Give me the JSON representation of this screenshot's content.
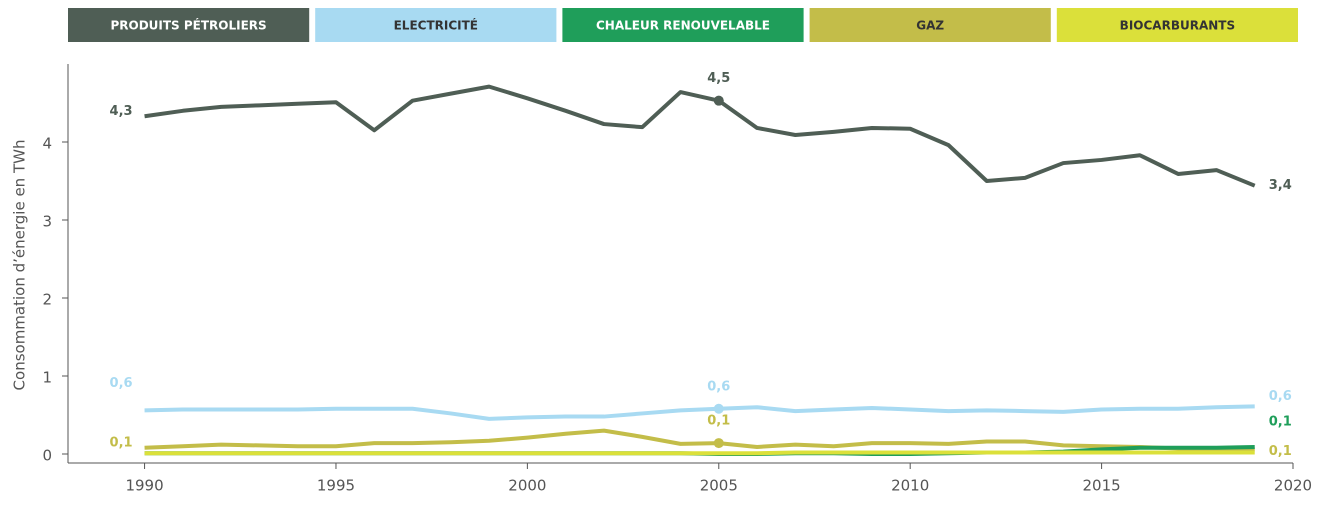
{
  "chart_data": {
    "type": "line",
    "ylabel": "Consommation d’énergie en TWh",
    "x": [
      1990,
      1991,
      1992,
      1993,
      1994,
      1995,
      1996,
      1997,
      1998,
      1999,
      2000,
      2001,
      2002,
      2003,
      2004,
      2005,
      2006,
      2007,
      2008,
      2009,
      2010,
      2011,
      2012,
      2013,
      2014,
      2015,
      2016,
      2017,
      2018,
      2019
    ],
    "xlim": [
      1988,
      2020
    ],
    "xticks": [
      1990,
      1995,
      2000,
      2005,
      2010,
      2015,
      2020
    ],
    "ylim": [
      -0.1,
      5
    ],
    "yticks": [
      0,
      1,
      2,
      3,
      4
    ],
    "legend": "top",
    "series": [
      {
        "name": "PRODUITS PÉTROLIERS",
        "color": "#4f5e55",
        "text_color": "#ffffff",
        "values": [
          4.33,
          4.4,
          4.45,
          4.47,
          4.49,
          4.51,
          4.15,
          4.53,
          4.62,
          4.71,
          4.56,
          4.4,
          4.23,
          4.19,
          4.64,
          4.53,
          4.18,
          4.09,
          4.13,
          4.18,
          4.17,
          3.96,
          3.5,
          3.54,
          3.73,
          3.77,
          3.83,
          3.59,
          3.64,
          3.44
        ],
        "value_labels": [
          "4,3",
          null,
          null,
          null,
          null,
          null,
          null,
          null,
          null,
          null,
          null,
          null,
          null,
          null,
          null,
          "4,5",
          null,
          null,
          null,
          null,
          null,
          null,
          null,
          null,
          null,
          null,
          null,
          null,
          null,
          "3,4"
        ]
      },
      {
        "name": "ELECTRICITÉ",
        "color": "#a8daf2",
        "text_color": "#333333",
        "values": [
          0.56,
          0.57,
          0.57,
          0.57,
          0.57,
          0.58,
          0.58,
          0.58,
          0.52,
          0.45,
          0.47,
          0.48,
          0.48,
          0.52,
          0.56,
          0.58,
          0.6,
          0.55,
          0.57,
          0.59,
          0.57,
          0.55,
          0.56,
          0.55,
          0.54,
          0.57,
          0.58,
          0.58,
          0.6,
          0.61
        ],
        "value_labels": [
          "0,6",
          null,
          null,
          null,
          null,
          null,
          null,
          null,
          null,
          null,
          null,
          null,
          null,
          null,
          null,
          "0,6",
          null,
          null,
          null,
          null,
          null,
          null,
          null,
          null,
          null,
          null,
          null,
          null,
          null,
          "0,6"
        ]
      },
      {
        "name": "CHALEUR RENOUVELABLE",
        "color": "#1f9e5a",
        "text_color": "#ffffff",
        "values": [
          0.01,
          0.01,
          0.01,
          0.01,
          0.01,
          0.01,
          0.01,
          0.01,
          0.01,
          0.01,
          0.01,
          0.01,
          0.01,
          0.01,
          0.01,
          0,
          0,
          0.01,
          0.01,
          0,
          0,
          0.01,
          0.02,
          0.02,
          0.03,
          0.06,
          0.08,
          0.08,
          0.08,
          0.09
        ],
        "value_labels": [
          null,
          null,
          null,
          null,
          null,
          null,
          null,
          null,
          null,
          null,
          null,
          null,
          null,
          null,
          null,
          null,
          null,
          null,
          null,
          null,
          null,
          null,
          null,
          null,
          null,
          null,
          null,
          null,
          null,
          "0,1"
        ]
      },
      {
        "name": "GAZ",
        "color": "#c3bd49",
        "text_color": "#333333",
        "values": [
          0.08,
          0.1,
          0.12,
          0.11,
          0.1,
          0.1,
          0.14,
          0.14,
          0.15,
          0.17,
          0.21,
          0.26,
          0.3,
          0.22,
          0.13,
          0.14,
          0.09,
          0.12,
          0.1,
          0.14,
          0.14,
          0.13,
          0.16,
          0.16,
          0.11,
          0.1,
          0.09,
          0.07,
          0.06,
          0.06
        ],
        "value_labels": [
          "0,1",
          null,
          null,
          null,
          null,
          null,
          null,
          null,
          null,
          null,
          null,
          null,
          null,
          null,
          null,
          "0,1",
          null,
          null,
          null,
          null,
          null,
          null,
          null,
          null,
          null,
          null,
          null,
          null,
          null,
          "0,1"
        ]
      },
      {
        "name": "BIOCARBURANTS",
        "color": "#dbe03a",
        "text_color": "#333333",
        "values": [
          0.01,
          0.01,
          0.01,
          0.01,
          0.01,
          0.01,
          0.01,
          0.01,
          0.01,
          0.01,
          0.01,
          0.01,
          0.01,
          0.01,
          0.01,
          0.01,
          0.01,
          0.02,
          0.02,
          0.02,
          0.02,
          0.02,
          0.02,
          0.02,
          0.02,
          0.02,
          0.02,
          0.02,
          0.02,
          0.02
        ]
      }
    ]
  }
}
